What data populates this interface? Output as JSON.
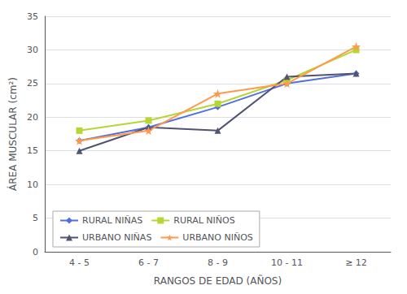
{
  "chart_data": {
    "type": "line",
    "categories": [
      "4 - 5",
      "6 - 7",
      "8 - 9",
      "10 - 11",
      "≥ 12"
    ],
    "series": [
      {
        "name": "RURAL NIÑAS",
        "values": [
          16.5,
          18.5,
          21.5,
          25.0,
          26.5
        ],
        "marker": "diamond"
      },
      {
        "name": "RURAL NIÑOS",
        "values": [
          18.0,
          19.5,
          22.0,
          25.5,
          30.0
        ],
        "marker": "square"
      },
      {
        "name": "URBANO NIÑAS",
        "values": [
          15.0,
          18.5,
          18.0,
          26.0,
          26.5
        ],
        "marker": "triangle"
      },
      {
        "name": "URBANO NIÑOS",
        "values": [
          16.5,
          18.0,
          23.5,
          25.0,
          30.5
        ],
        "marker": "star"
      }
    ],
    "ylabel": "ÁREA MUSCULAR (cm²)",
    "xlabel": "RANGOS DE EDAD (AÑOS)",
    "ylim": [
      0,
      35
    ],
    "yticks": [
      0,
      5,
      10,
      15,
      20,
      25,
      30,
      35
    ],
    "grid": true,
    "legend": "lower left"
  }
}
